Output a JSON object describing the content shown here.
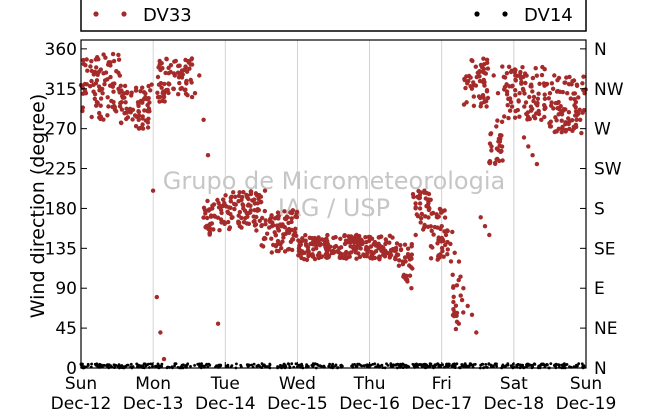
{
  "chart_data": {
    "type": "scatter",
    "title": "",
    "ylabel": "Wind direction (degree)",
    "ylim": [
      0,
      370
    ],
    "y_ticks": [
      0,
      45,
      90,
      135,
      180,
      225,
      270,
      315,
      360
    ],
    "y_tick_labels": [
      "0",
      "45",
      "90",
      "135",
      "180",
      "225",
      "270",
      "315",
      "360"
    ],
    "y2_ticks": [
      0,
      45,
      90,
      135,
      180,
      225,
      270,
      315,
      360
    ],
    "y2_tick_labels": [
      "N",
      "NE",
      "E",
      "SE",
      "S",
      "SW",
      "W",
      "NW",
      "N"
    ],
    "xlim": [
      0,
      7
    ],
    "x_ticks": [
      0,
      1,
      2,
      3,
      4,
      5,
      6,
      7
    ],
    "x_tick_labels": [
      [
        "Sun",
        "Dec-12"
      ],
      [
        "Mon",
        "Dec-13"
      ],
      [
        "Tue",
        "Dec-14"
      ],
      [
        "Wed",
        "Dec-15"
      ],
      [
        "Thu",
        "Dec-16"
      ],
      [
        "Fri",
        "Dec-17"
      ],
      [
        "Sat",
        "Dec-18"
      ],
      [
        "Sun",
        "Dec-19"
      ]
    ],
    "grid": "vertical",
    "legend": "top",
    "watermark": [
      "Grupo de Micrometeorologia",
      "IAG / USP"
    ],
    "series": [
      {
        "name": "DV33",
        "color": "#a52a2a",
        "x": [
          0.02,
          0.08,
          0.15,
          0.22,
          0.3,
          0.38,
          0.45,
          0.52,
          0.6,
          0.68,
          0.75,
          0.8,
          0.85,
          0.92,
          1.0,
          1.05,
          1.1,
          1.15,
          1.22,
          1.3,
          1.38,
          1.45,
          1.52,
          1.58,
          1.64,
          1.7,
          1.76,
          1.82,
          1.9,
          1.97,
          2.04,
          2.1,
          2.18,
          2.25,
          2.33,
          2.4,
          2.47,
          2.55,
          2.62,
          2.7,
          2.78,
          2.86,
          2.94,
          3.02,
          3.1,
          3.18,
          3.26,
          3.34,
          3.42,
          3.5,
          3.58,
          3.66,
          3.74,
          3.82,
          3.9,
          3.98,
          4.06,
          4.14,
          4.22,
          4.3,
          4.38,
          4.46,
          4.52,
          4.58,
          4.64,
          4.7,
          4.76,
          4.82,
          4.88,
          4.94,
          5.0,
          5.06,
          5.12,
          5.18,
          5.24,
          5.3,
          5.36,
          5.42,
          5.48,
          5.54,
          5.6,
          5.66,
          5.72,
          5.78,
          5.84,
          5.9,
          5.96,
          6.02,
          6.08,
          6.14,
          6.2,
          6.26,
          6.32,
          6.38,
          6.44,
          6.5,
          6.56,
          6.62,
          6.68,
          6.74,
          6.8,
          6.86,
          6.92,
          6.98
        ],
        "y": [
          290,
          320,
          335,
          300,
          310,
          295,
          300,
          315,
          305,
          290,
          285,
          280,
          300,
          290,
          200,
          80,
          40,
          10,
          320,
          330,
          315,
          340,
          325,
          310,
          330,
          280,
          240,
          180,
          50,
          190,
          175,
          170,
          165,
          180,
          175,
          190,
          195,
          200,
          165,
          150,
          160,
          155,
          145,
          135,
          130,
          140,
          135,
          145,
          140,
          130,
          135,
          140,
          145,
          150,
          140,
          135,
          130,
          138,
          140,
          132,
          128,
          120,
          100,
          90,
          150,
          180,
          200,
          190,
          175,
          170,
          160,
          150,
          140,
          130,
          120,
          90,
          70,
          60,
          40,
          170,
          160,
          150,
          330,
          310,
          340,
          320,
          300,
          330,
          310,
          260,
          250,
          240,
          230,
          280,
          320,
          310,
          330,
          300,
          290,
          310,
          320,
          300,
          280,
          310
        ],
        "dense": [
          {
            "x": [
              0.0,
              0.55
            ],
            "y": [
              280,
              355
            ]
          },
          {
            "x": [
              0.55,
              0.98
            ],
            "y": [
              270,
              320
            ]
          },
          {
            "x": [
              1.05,
              1.55
            ],
            "y": [
              300,
              350
            ]
          },
          {
            "x": [
              1.7,
              2.0
            ],
            "y": [
              150,
              190
            ]
          },
          {
            "x": [
              2.0,
              2.5
            ],
            "y": [
              155,
              200
            ]
          },
          {
            "x": [
              2.5,
              3.0
            ],
            "y": [
              130,
              180
            ]
          },
          {
            "x": [
              3.0,
              4.4
            ],
            "y": [
              122,
              150
            ]
          },
          {
            "x": [
              4.4,
              4.6
            ],
            "y": [
              95,
              140
            ]
          },
          {
            "x": [
              4.6,
              4.85
            ],
            "y": [
              155,
              200
            ]
          },
          {
            "x": [
              4.85,
              5.15
            ],
            "y": [
              120,
              180
            ]
          },
          {
            "x": [
              5.15,
              5.3
            ],
            "y": [
              40,
              110
            ]
          },
          {
            "x": [
              5.3,
              5.65
            ],
            "y": [
              295,
              350
            ]
          },
          {
            "x": [
              5.65,
              5.85
            ],
            "y": [
              230,
              280
            ]
          },
          {
            "x": [
              5.85,
              6.45
            ],
            "y": [
              280,
              340
            ]
          },
          {
            "x": [
              6.45,
              7.0
            ],
            "y": [
              265,
              330
            ]
          }
        ]
      },
      {
        "name": "DV14",
        "color": "#000000",
        "dense": [
          {
            "x": [
              0.0,
              7.0
            ],
            "y": [
              0,
              5
            ]
          }
        ]
      }
    ]
  }
}
